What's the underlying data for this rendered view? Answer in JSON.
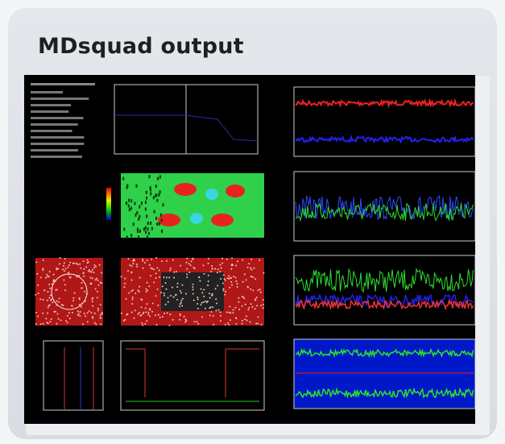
{
  "title": "MDsquad output"
}
